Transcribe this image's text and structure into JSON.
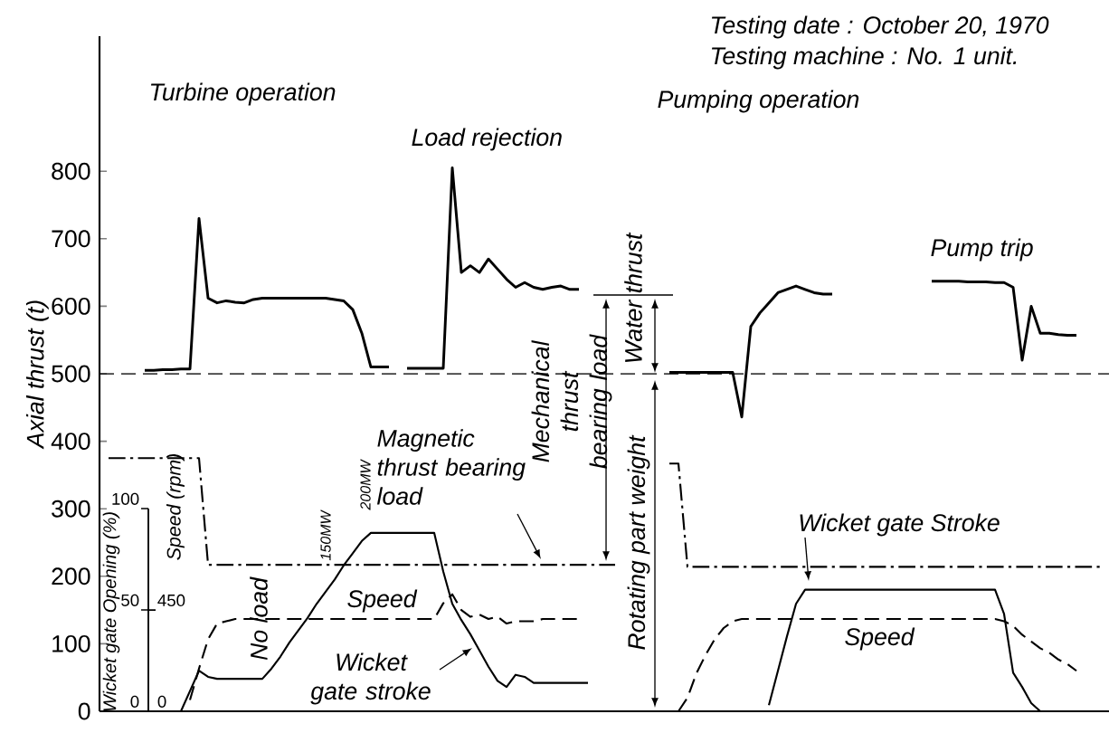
{
  "chart_data": {
    "type": "line",
    "ylabel": "Axial thrust (t)",
    "y2label": "Wicket gate Opening (%)",
    "y3label": "Speed (rpm)",
    "categories": [
      null,
      null,
      null,
      null,
      null,
      null,
      null,
      null,
      null,
      null,
      null,
      null,
      null,
      null,
      null,
      null,
      null,
      null,
      null,
      null,
      null,
      null,
      null,
      null,
      null,
      null,
      null,
      null,
      null,
      null,
      null,
      null,
      null,
      null,
      null,
      null,
      null,
      null,
      null,
      null,
      null,
      null,
      null,
      null,
      null,
      null,
      null,
      null,
      null,
      null,
      null,
      null,
      null,
      null,
      null,
      null,
      null,
      null,
      null,
      null,
      null,
      null,
      null,
      null,
      null,
      null,
      null,
      null,
      null,
      null,
      null,
      null,
      null,
      null,
      null,
      null,
      null,
      null,
      null,
      null,
      null,
      null,
      null,
      null,
      null,
      null,
      null,
      null,
      null,
      null,
      null,
      null,
      null,
      null,
      null,
      null,
      null,
      null,
      null,
      null,
      null,
      null,
      null,
      null,
      null,
      null,
      null,
      null,
      null,
      null,
      null,
      null
    ],
    "ylim": [
      0,
      1000
    ],
    "yticks": [
      0,
      100,
      200,
      300,
      400,
      500,
      600,
      700,
      800
    ],
    "y2lim": [
      0,
      333
    ],
    "y2ticks": [
      0,
      50,
      100
    ],
    "y3lim": [
      0,
      3000
    ],
    "y3ticks": [
      0,
      450
    ],
    "tick_labels": "y",
    "ref_lines": [
      {
        "axis": "y",
        "value": 500,
        "line_style": "dashed",
        "color": "#000000"
      }
    ],
    "annotations": [
      "Testing date : October 20, 1970",
      "Testing machine : No. 1 unit.",
      "Turbine operation",
      "Load rejection",
      "Pumping operation",
      "Pump trip",
      "Magnetic thrust bearing load",
      "Mechanical thrust bearing load",
      "Water thrust",
      "Rotating part weight",
      "No load",
      "150MW",
      "200MW",
      "Speed",
      "Wicket gate stroke",
      "Wicket gate Stroke",
      "Speed"
    ],
    "series": [
      {
        "color": "#000000",
        "line_style": "solid",
        "values": [
          null,
          null,
          null,
          null,
          null,
          505,
          505,
          506,
          506,
          507,
          507,
          730,
          612,
          605,
          608,
          606,
          605,
          610,
          612,
          612,
          612,
          612,
          612,
          612,
          612,
          612,
          610,
          608,
          595,
          560,
          510,
          510,
          510,
          null,
          508,
          508,
          508,
          508,
          508,
          805,
          650,
          660,
          650,
          670,
          655,
          640,
          628,
          635,
          628,
          625,
          628,
          630,
          625,
          625,
          null,
          null,
          null,
          null,
          null,
          null,
          null,
          null,
          null,
          502,
          502,
          502,
          502,
          502,
          502,
          502,
          502,
          436,
          570,
          590,
          605,
          620,
          625,
          630,
          625,
          620,
          618,
          618,
          null,
          null,
          null,
          null,
          null,
          null,
          null,
          null,
          null,
          null,
          637,
          637,
          637,
          637,
          636,
          636,
          636,
          635,
          635,
          628,
          520,
          600,
          560,
          560,
          558,
          557,
          557,
          null,
          null,
          null
        ]
      },
      {
        "color": "#000000",
        "line_style": "dashdot",
        "values": [
          null,
          375,
          375,
          375,
          375,
          375,
          375,
          375,
          375,
          375,
          375,
          375,
          217,
          217,
          217,
          217,
          217,
          217,
          217,
          217,
          217,
          217,
          217,
          217,
          217,
          217,
          217,
          217,
          217,
          217,
          217,
          217,
          217,
          217,
          217,
          217,
          217,
          217,
          217,
          217,
          217,
          217,
          217,
          217,
          217,
          217,
          217,
          217,
          217,
          217,
          217,
          217,
          217,
          217,
          217,
          217,
          217,
          217,
          null,
          null,
          null,
          null,
          null,
          367,
          367,
          214,
          214,
          214,
          214,
          214,
          214,
          214,
          214,
          214,
          214,
          214,
          214,
          214,
          214,
          214,
          214,
          214,
          214,
          214,
          214,
          214,
          214,
          214,
          214,
          214,
          214,
          214,
          214,
          214,
          214,
          214,
          214,
          214,
          214,
          214,
          214,
          214,
          214,
          214,
          214,
          214,
          214,
          214,
          214,
          214,
          214,
          214
        ]
      },
      {
        "color": "#000000",
        "line_style": "solid",
        "axis": "y2",
        "values": [
          null,
          null,
          null,
          null,
          null,
          null,
          null,
          null,
          null,
          0,
          10,
          20,
          17,
          16,
          16,
          16,
          16,
          16,
          16,
          21,
          27,
          34,
          40,
          46,
          53,
          59,
          65,
          72,
          78,
          84,
          88,
          88,
          88,
          88,
          88,
          88,
          88,
          88,
          69,
          53,
          45,
          38,
          30,
          22,
          15,
          12,
          18,
          17,
          14,
          14,
          14,
          14,
          14,
          14,
          14,
          null,
          null,
          null,
          null,
          null,
          null,
          null,
          null,
          null,
          null,
          null,
          null,
          null,
          null,
          null,
          null,
          null,
          null,
          null,
          3,
          20,
          37,
          53,
          60,
          60,
          60,
          60,
          60,
          60,
          60,
          60,
          60,
          60,
          60,
          60,
          60,
          60,
          60,
          60,
          60,
          60,
          60,
          60,
          60,
          60,
          48,
          19,
          12,
          4,
          0,
          null,
          null,
          null,
          null,
          null,
          null,
          null
        ]
      },
      {
        "color": "#000000",
        "line_style": "dashed",
        "axis": "y3",
        "values": [
          null,
          null,
          null,
          null,
          null,
          null,
          null,
          null,
          null,
          null,
          50,
          190,
          320,
          390,
          400,
          410,
          410,
          410,
          410,
          410,
          410,
          410,
          410,
          410,
          410,
          410,
          410,
          410,
          410,
          410,
          410,
          410,
          410,
          410,
          410,
          410,
          410,
          410,
          480,
          520,
          450,
          420,
          430,
          410,
          420,
          390,
          400,
          400,
          400,
          410,
          410,
          410,
          410,
          410,
          null,
          null,
          null,
          null,
          null,
          null,
          null,
          null,
          null,
          null,
          0,
          60,
          170,
          250,
          320,
          370,
          400,
          410,
          410,
          410,
          410,
          410,
          410,
          410,
          410,
          410,
          410,
          410,
          410,
          410,
          410,
          410,
          410,
          410,
          410,
          410,
          410,
          410,
          410,
          410,
          410,
          410,
          410,
          410,
          410,
          410,
          400,
          380,
          340,
          310,
          280,
          260,
          230,
          210,
          180,
          null,
          null,
          null
        ]
      }
    ]
  }
}
